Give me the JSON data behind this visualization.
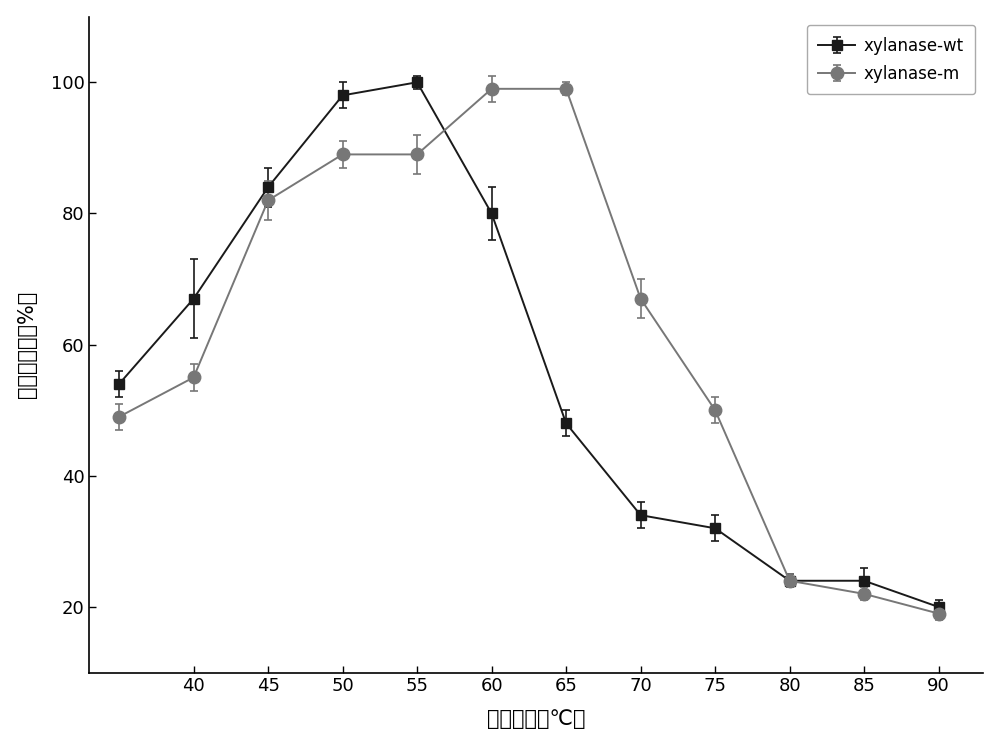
{
  "wt_x": [
    35,
    40,
    45,
    50,
    55,
    60,
    65,
    70,
    75,
    80,
    85,
    90
  ],
  "wt_y": [
    54,
    67,
    84,
    98,
    100,
    80,
    48,
    34,
    32,
    24,
    24,
    20
  ],
  "wt_yerr": [
    2,
    6,
    3,
    2,
    1,
    4,
    2,
    2,
    2,
    1,
    2,
    1
  ],
  "m_x": [
    35,
    40,
    45,
    50,
    55,
    60,
    65,
    70,
    75,
    80,
    85,
    90
  ],
  "m_y": [
    49,
    55,
    82,
    89,
    89,
    99,
    99,
    67,
    50,
    24,
    22,
    19
  ],
  "m_yerr": [
    2,
    2,
    3,
    2,
    3,
    2,
    1,
    3,
    2,
    1,
    1,
    1
  ],
  "wt_color": "#1a1a1a",
  "m_color": "#777777",
  "wt_label": "xylanase-wt",
  "m_label": "xylanase-m",
  "xlabel": "反应温度（℃）",
  "ylabel": "相对酶活力（%）",
  "xlim": [
    33,
    93
  ],
  "ylim": [
    10,
    110
  ],
  "xticks": [
    40,
    45,
    50,
    55,
    60,
    65,
    70,
    75,
    80,
    85,
    90
  ],
  "yticks": [
    20,
    40,
    60,
    80,
    100
  ],
  "background_color": "#ffffff",
  "figure_width": 10.0,
  "figure_height": 7.46
}
